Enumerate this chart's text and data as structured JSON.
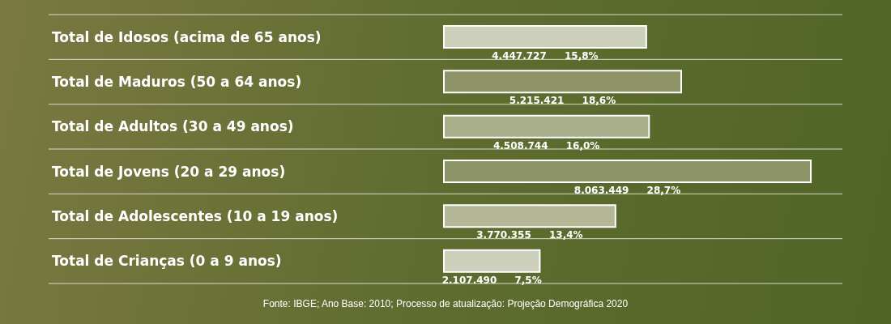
{
  "chart_data": {
    "type": "bar",
    "orientation": "horizontal",
    "categories": [
      "Total de Idosos (acima de 65 anos)",
      "Total de Maduros (50 a 64 anos)",
      "Total de Adultos (30 a 49 anos)",
      "Total de Jovens (20 a 29 anos)",
      "Total de Adolescentes (10 a 19 anos)",
      "Total de Crianças (0 a 9 anos)"
    ],
    "values": [
      4447727,
      5215421,
      4508744,
      8063449,
      3770355,
      2107490
    ],
    "colors": [
      "#cdd0ba",
      "#8e9468",
      "#a8ad8a",
      "#8d9467",
      "#b5b896",
      "#cdd0ba"
    ],
    "value_labels": [
      "4.447.727 15,8%",
      "5.215.421 18,6%",
      "4.508.744 16,0%",
      "8.063.449 28,7%",
      "3.770.355 13,4%",
      "2.107.490 7,5%"
    ],
    "grid": "y",
    "annotations": [
      "Fonte: IBGE; Ano Base: 2010; Processo de atualização: Projeção Demográfica 2020"
    ]
  }
}
